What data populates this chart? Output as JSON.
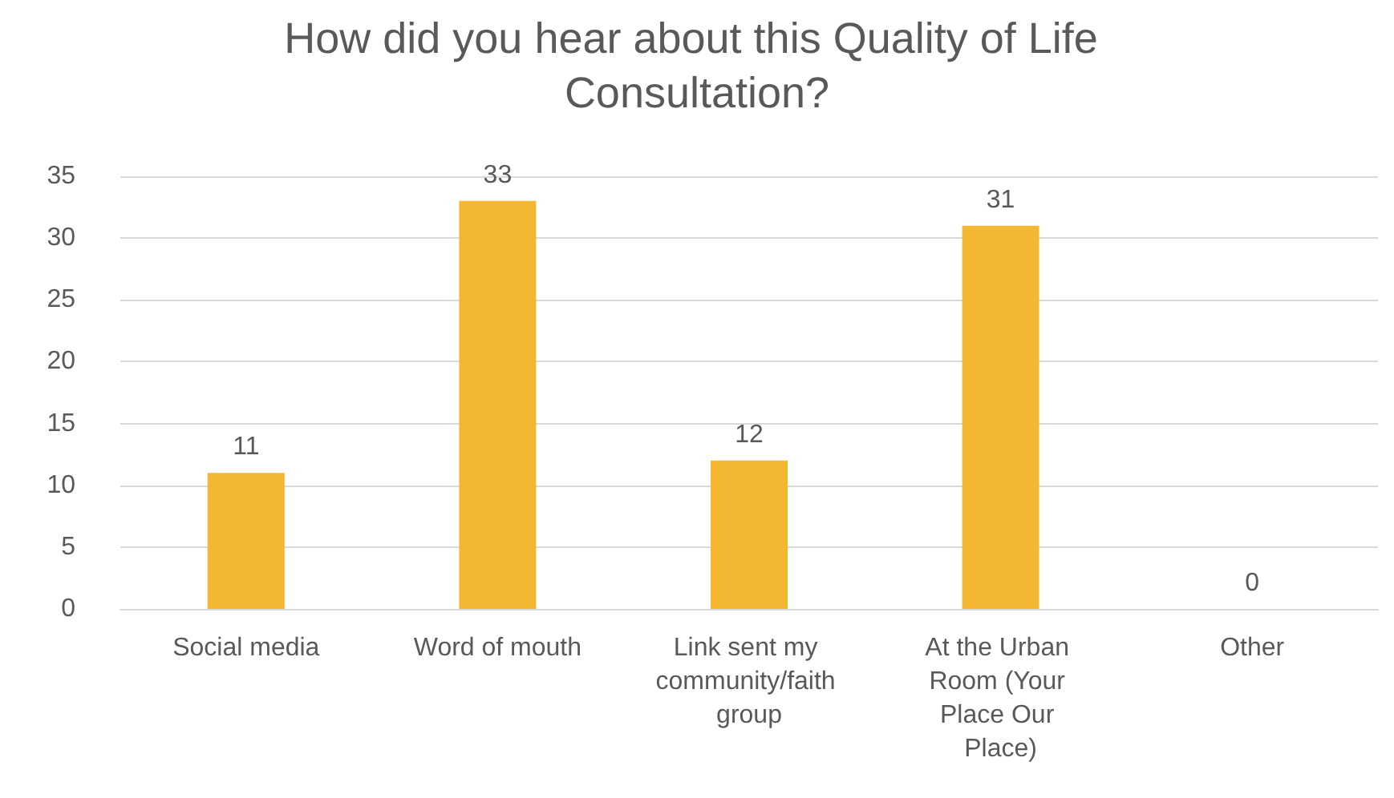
{
  "chart_data": {
    "type": "bar",
    "title": "How did you hear about this Quality of Life Consultation?",
    "categories": [
      "Social media",
      "Word of mouth",
      "Link sent my community/faith group",
      "At the Urban Room (Your Place Our Place)",
      "Other"
    ],
    "values": [
      11,
      33,
      12,
      31,
      0
    ],
    "color": "#f4b731",
    "ylim": [
      0,
      35
    ],
    "yticks": [
      0,
      5,
      10,
      15,
      20,
      25,
      30,
      35
    ],
    "grid": "y",
    "data_labels": true
  }
}
